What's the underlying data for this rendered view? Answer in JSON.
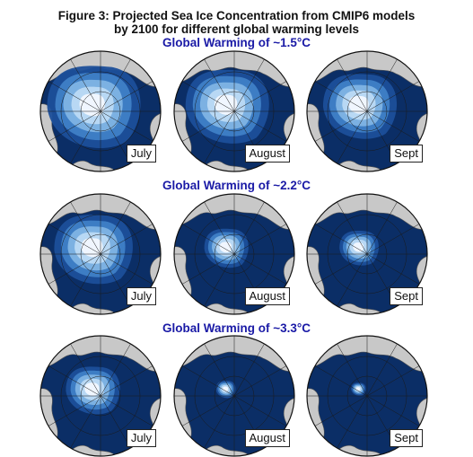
{
  "figure": {
    "title_line1": "Figure 3: Projected Sea Ice Concentration from CMIP6 models",
    "title_line2": "by 2100 for different global warming levels",
    "heading_color": "#1a1aa6",
    "ocean_color": "#0b2e66",
    "land_color": "#c8c8c8",
    "ice_colors": [
      "#f2f8ff",
      "#bcdaf4",
      "#7fb4e4",
      "#3f7fc6",
      "#1c4f9a"
    ]
  },
  "rows": [
    {
      "heading": "Global Warming of ~1.5°C",
      "ice_level": 0.95,
      "maps": [
        {
          "month": "July",
          "ice_level": 0.95
        },
        {
          "month": "August",
          "ice_level": 0.85
        },
        {
          "month": "Sept",
          "ice_level": 0.75
        }
      ]
    },
    {
      "heading": "Global Warming of ~2.2°C",
      "ice_level": 0.6,
      "maps": [
        {
          "month": "July",
          "ice_level": 0.8
        },
        {
          "month": "August",
          "ice_level": 0.45
        },
        {
          "month": "Sept",
          "ice_level": 0.4
        }
      ]
    },
    {
      "heading": "Global Warming of ~3.3°C",
      "ice_level": 0.3,
      "maps": [
        {
          "month": "July",
          "ice_level": 0.55
        },
        {
          "month": "August",
          "ice_level": 0.2
        },
        {
          "month": "Sept",
          "ice_level": 0.15
        }
      ]
    }
  ]
}
